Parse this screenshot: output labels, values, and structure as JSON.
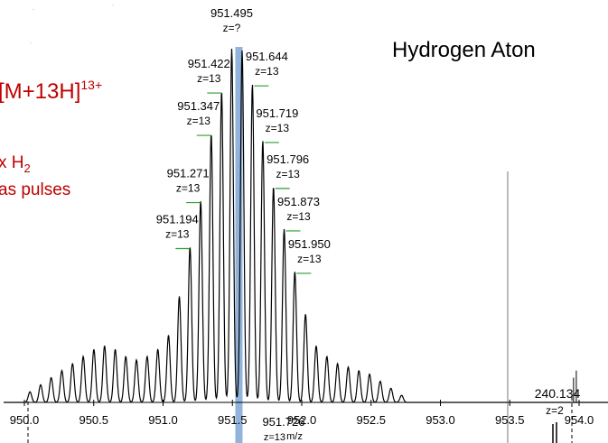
{
  "title": "Hydrogen Aton",
  "ion_label": {
    "main": "[M+13H]",
    "superscript": "13+"
  },
  "treatment": {
    "line1_prefix": "x H",
    "line1_subscript": "2",
    "line2": "as pulses"
  },
  "colors": {
    "accent": "#c00000",
    "highlight": "#7fa6d6",
    "marker": "#2e9e2e",
    "trace": "#000000"
  },
  "chart_data": {
    "type": "line",
    "xlabel": "m/z",
    "xlim": [
      949.85,
      954.35
    ],
    "ticks": [
      {
        "x": 950.0,
        "label": "950.0"
      },
      {
        "x": 950.5,
        "label": "950.5"
      },
      {
        "x": 951.0,
        "label": "951.0"
      },
      {
        "x": 951.5,
        "label": "951.5"
      },
      {
        "x": 952.0,
        "label": "952.0"
      },
      {
        "x": 952.5,
        "label": "952.5"
      },
      {
        "x": 953.0,
        "label": "953.0"
      },
      {
        "x": 953.5,
        "label": "953.5"
      },
      {
        "x": 954.0,
        "label": "954.0"
      }
    ],
    "highlight_mz": 951.547,
    "series": [
      {
        "peaks": [
          {
            "mz": 950.04,
            "rel": 0.03
          },
          {
            "mz": 950.117,
            "rel": 0.05
          },
          {
            "mz": 950.193,
            "rel": 0.07
          },
          {
            "mz": 950.27,
            "rel": 0.09
          },
          {
            "mz": 950.347,
            "rel": 0.11
          },
          {
            "mz": 950.424,
            "rel": 0.13
          },
          {
            "mz": 950.501,
            "rel": 0.15
          },
          {
            "mz": 950.578,
            "rel": 0.16
          },
          {
            "mz": 950.655,
            "rel": 0.15
          },
          {
            "mz": 950.731,
            "rel": 0.13
          },
          {
            "mz": 950.808,
            "rel": 0.12
          },
          {
            "mz": 950.885,
            "rel": 0.13
          },
          {
            "mz": 950.962,
            "rel": 0.15
          },
          {
            "mz": 951.039,
            "rel": 0.19
          },
          {
            "mz": 951.117,
            "rel": 0.3
          },
          {
            "mz": 951.194,
            "rel": 0.44
          },
          {
            "mz": 951.271,
            "rel": 0.57
          },
          {
            "mz": 951.347,
            "rel": 0.76
          },
          {
            "mz": 951.422,
            "rel": 0.88
          },
          {
            "mz": 951.495,
            "rel": 1.0
          },
          {
            "mz": 951.57,
            "rel": 0.995
          },
          {
            "mz": 951.644,
            "rel": 0.9
          },
          {
            "mz": 951.719,
            "rel": 0.74
          },
          {
            "mz": 951.796,
            "rel": 0.61
          },
          {
            "mz": 951.873,
            "rel": 0.49
          },
          {
            "mz": 951.95,
            "rel": 0.37
          },
          {
            "mz": 952.027,
            "rel": 0.25
          },
          {
            "mz": 952.104,
            "rel": 0.16
          },
          {
            "mz": 952.181,
            "rel": 0.13
          },
          {
            "mz": 952.258,
            "rel": 0.11
          },
          {
            "mz": 952.335,
            "rel": 0.1
          },
          {
            "mz": 952.412,
            "rel": 0.09
          },
          {
            "mz": 952.489,
            "rel": 0.08
          },
          {
            "mz": 952.566,
            "rel": 0.06
          },
          {
            "mz": 952.643,
            "rel": 0.04
          },
          {
            "mz": 952.72,
            "rel": 0.02
          }
        ]
      }
    ],
    "annotations": [
      {
        "mz": 951.194,
        "label": "951.194",
        "charge": "z=13",
        "rel": 0.44
      },
      {
        "mz": 951.271,
        "label": "951.271",
        "charge": "z=13",
        "rel": 0.57
      },
      {
        "mz": 951.347,
        "label": "951.347",
        "charge": "z=13",
        "rel": 0.76
      },
      {
        "mz": 951.422,
        "label": "951.422",
        "charge": "z=13",
        "rel": 0.88
      },
      {
        "mz": 951.495,
        "label": "951.495",
        "charge": "z=?",
        "rel": 1.0
      },
      {
        "mz": 951.644,
        "label": "951.644",
        "charge": "z=13",
        "rel": 0.9
      },
      {
        "mz": 951.719,
        "label": "951.719",
        "charge": "z=13",
        "rel": 0.74
      },
      {
        "mz": 951.796,
        "label": "951.796",
        "charge": "z=13",
        "rel": 0.61
      },
      {
        "mz": 951.873,
        "label": "951.873",
        "charge": "z=13",
        "rel": 0.49
      },
      {
        "mz": 951.95,
        "label": "951.950",
        "charge": "z=13",
        "rel": 0.37
      },
      {
        "mz": 951.726,
        "label": "951.726",
        "charge": "z=13",
        "rel": -0.1,
        "below": true
      },
      {
        "mz": 953.98,
        "label": "240.134",
        "charge": "z=2",
        "rel": 0.09
      }
    ]
  }
}
